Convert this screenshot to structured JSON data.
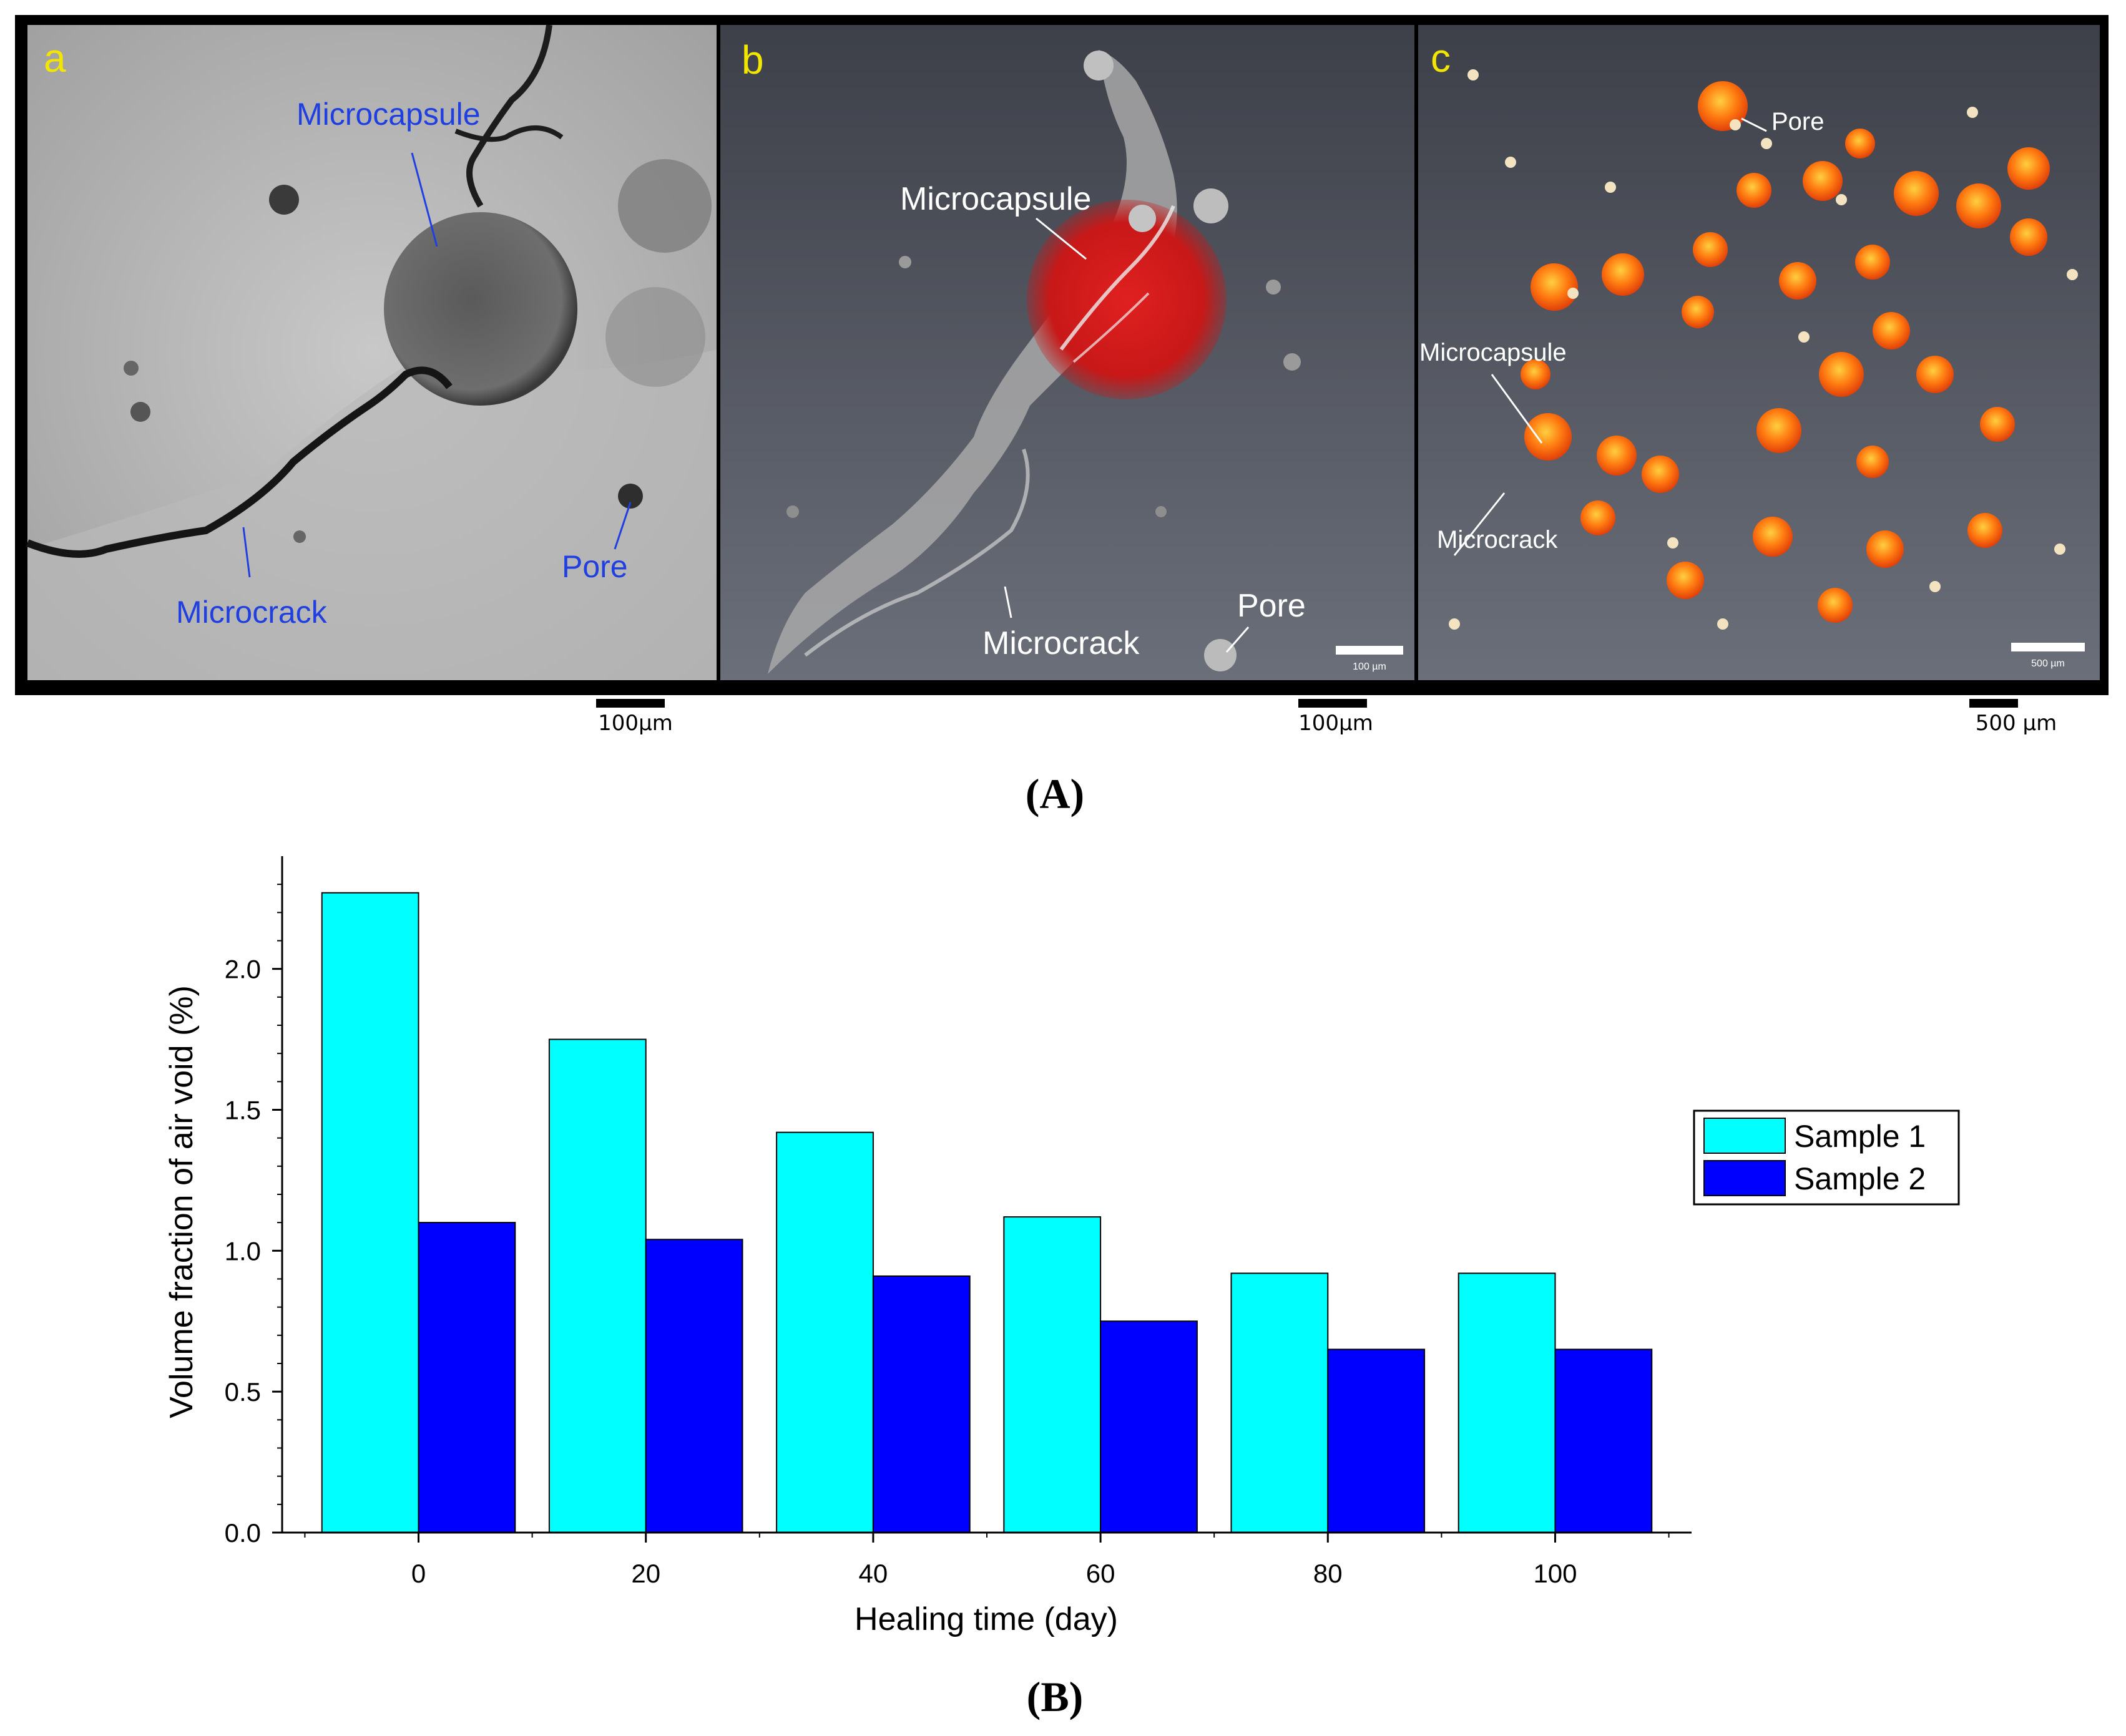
{
  "figure_A": {
    "caption": "(A)",
    "panels": [
      {
        "letter": "a",
        "labels": {
          "microcapsule": "Microcapsule",
          "microcrack": "Microcrack",
          "pore": "Pore"
        },
        "scalebar": "100μm"
      },
      {
        "letter": "b",
        "labels": {
          "microcapsule": "Microcapsule",
          "microcrack": "Microcrack",
          "pore": "Pore"
        },
        "inner_scalebar": "100 µm",
        "scalebar": "100μm"
      },
      {
        "letter": "c",
        "labels": {
          "microcapsule": "Microcapsule",
          "microcrack": "Microcrack",
          "pore": "Pore"
        },
        "inner_scalebar": "500 µm",
        "scalebar": "500 μm"
      }
    ],
    "colors": {
      "panel_letter": "#f2e600",
      "label_a": "#1f3fe0",
      "label_bc": "#ffffff"
    }
  },
  "figure_B": {
    "caption": "(B)"
  },
  "chart_data": {
    "type": "bar",
    "title": "",
    "xlabel": "Healing time (day)",
    "ylabel": "Volume fraction of air void (%)",
    "categories": [
      "0",
      "20",
      "40",
      "60",
      "80",
      "100"
    ],
    "series": [
      {
        "name": "Sample 1",
        "color": "#00ffff",
        "values": [
          2.27,
          1.75,
          1.42,
          1.12,
          0.92,
          0.92
        ]
      },
      {
        "name": "Sample 2",
        "color": "#0000ff",
        "values": [
          1.1,
          1.04,
          0.91,
          0.75,
          0.65,
          0.65
        ]
      }
    ],
    "ylim": [
      0,
      2.4
    ],
    "yticks": [
      "0.0",
      "0.5",
      "1.0",
      "1.5",
      "2.0"
    ],
    "legend_position": "right"
  }
}
